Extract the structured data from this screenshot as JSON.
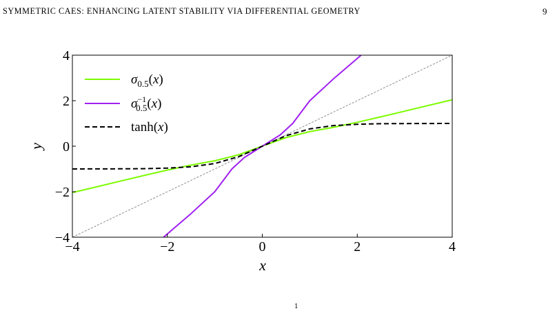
{
  "running_head": {
    "title": "SYMMETRIC CAES: ENHANCING LATENT STABILITY VIA DIFFERENTIAL GEOMETRY",
    "page_number": "9"
  },
  "figure": {
    "stray_mark": "1"
  },
  "chart_data": {
    "type": "line",
    "title": "",
    "xlabel": "x",
    "ylabel": "y",
    "xlim": [
      -4,
      4
    ],
    "ylim": [
      -4,
      4
    ],
    "xticks": [
      -4,
      -2,
      0,
      2,
      4
    ],
    "yticks": [
      -4,
      -2,
      0,
      2,
      4
    ],
    "xtick_labels": [
      "−4",
      "−2",
      "0",
      "2",
      "4"
    ],
    "ytick_labels": [
      "−4",
      "−2",
      "0",
      "2",
      "4"
    ],
    "grid": false,
    "legend_position": "top-left",
    "series": [
      {
        "name": "σ0.5(x)",
        "color": "#7cfc00",
        "style": "solid",
        "x": [
          -4,
          -3.5,
          -3,
          -2.5,
          -2,
          -1.5,
          -1,
          -0.5,
          0,
          0.5,
          1,
          1.5,
          2,
          2.5,
          3,
          3.5,
          4
        ],
        "y": [
          -2.04,
          -1.79,
          -1.54,
          -1.29,
          -1.05,
          -0.83,
          -0.64,
          -0.38,
          0,
          0.38,
          0.64,
          0.83,
          1.05,
          1.29,
          1.54,
          1.79,
          2.04
        ]
      },
      {
        "name": "σ0.5−1(x)",
        "color": "#a020f0",
        "style": "solid",
        "x": [
          -2.08,
          -1.5,
          -1,
          -0.64,
          -0.38,
          0,
          0.38,
          0.64,
          1,
          1.5,
          2.08
        ],
        "y": [
          -4,
          -2.96,
          -2,
          -1.0,
          -0.5,
          0,
          0.5,
          1.0,
          2,
          2.96,
          4
        ]
      },
      {
        "name": "tanh(x)",
        "color": "#000000",
        "style": "dashed",
        "x": [
          -4,
          -3.5,
          -3,
          -2.5,
          -2,
          -1.5,
          -1,
          -0.5,
          0,
          0.5,
          1,
          1.5,
          2,
          2.5,
          3,
          3.5,
          4
        ],
        "y": [
          -0.999,
          -0.998,
          -0.995,
          -0.987,
          -0.964,
          -0.905,
          -0.762,
          -0.462,
          0,
          0.462,
          0.762,
          0.905,
          0.964,
          0.987,
          0.995,
          0.998,
          0.999
        ]
      },
      {
        "name": "",
        "color": "#808080",
        "style": "thin-dashed",
        "x": [
          -4,
          4
        ],
        "y": [
          -4,
          4
        ]
      }
    ]
  }
}
